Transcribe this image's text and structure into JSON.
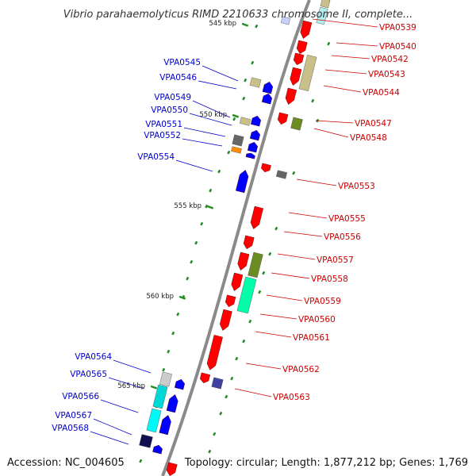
{
  "title": "Vibrio parahaemolyticus RIMD 2210633 chromosome II, complete...",
  "footer": {
    "accession": "Accession: NC_004605",
    "summary": "Topology: circular; Length: 1,877,212 bp; Genes: 1,769"
  },
  "colors": {
    "forward": "#ff0000",
    "reverse": "#0000ff",
    "forward_label": "#cc0000",
    "reverse_label": "#0000cc",
    "backbone": "#888888",
    "tick": "#228b22"
  },
  "kbp_marks": [
    "545 kbp",
    "550 kbp",
    "555 kbp",
    "560 kbp",
    "565 kbp"
  ],
  "forward_genes": [
    "VPA0539",
    "VPA0540",
    "VPA0542",
    "VPA0543",
    "VPA0544",
    "VPA0547",
    "VPA0548",
    "VPA0553",
    "VPA0555",
    "VPA0556",
    "VPA0557",
    "VPA0558",
    "VPA0559",
    "VPA0560",
    "VPA0561",
    "VPA0562",
    "VPA0563"
  ],
  "reverse_genes": [
    "VPA0545",
    "VPA0546",
    "VPA0549",
    "VPA0550",
    "VPA0551",
    "VPA0552",
    "VPA0554",
    "VPA0564",
    "VPA0565",
    "VPA0566",
    "VPA0567",
    "VPA0568"
  ]
}
